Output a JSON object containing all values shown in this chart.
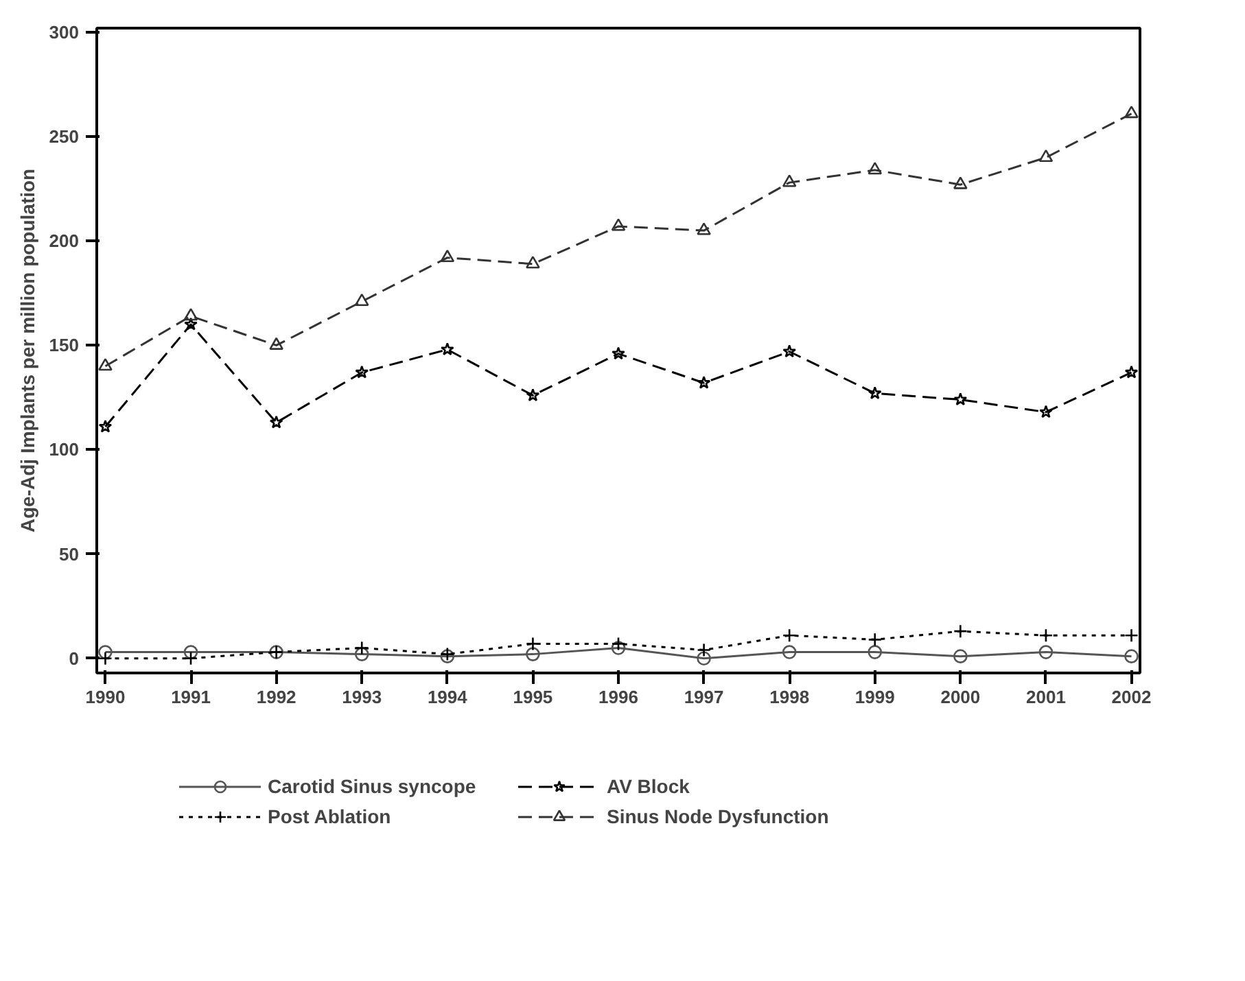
{
  "chart_data": {
    "type": "line",
    "ylabel": "Age-Adj Implants per million population",
    "x": [
      1990,
      1991,
      1992,
      1993,
      1994,
      1995,
      1996,
      1997,
      1998,
      1999,
      2000,
      2001,
      2002
    ],
    "xlim": [
      1990,
      2002
    ],
    "xticks": [
      1990,
      1991,
      1992,
      1993,
      1994,
      1995,
      1996,
      1997,
      1998,
      1999,
      2000,
      2001,
      2002
    ],
    "ylim": [
      -7,
      302
    ],
    "yticks": [
      0,
      50,
      100,
      150,
      200,
      250,
      300
    ],
    "grid": false,
    "legend": "bottom",
    "series": [
      {
        "name": "Carotid Sinus syncope",
        "color": "#555555",
        "marker": "circle",
        "line_style": "solid",
        "values": [
          3,
          3,
          3,
          2,
          1,
          2,
          5,
          0,
          3,
          3,
          1,
          3,
          1
        ]
      },
      {
        "name": "Post Ablation",
        "color": "#000000",
        "marker": "cross",
        "line_style": "dotted",
        "values": [
          0,
          0,
          3,
          5,
          2,
          7,
          7,
          4,
          11,
          9,
          13,
          11,
          11
        ]
      },
      {
        "name": "AV Block",
        "color": "#000000",
        "marker": "star",
        "line_style": "dashed",
        "values": [
          111,
          160,
          113,
          137,
          148,
          126,
          146,
          132,
          147,
          127,
          124,
          118,
          137
        ]
      },
      {
        "name": "Sinus Node Dysfunction",
        "color": "#333333",
        "marker": "triangle",
        "line_style": "dashed",
        "values": [
          140,
          164,
          150,
          171,
          192,
          189,
          207,
          205,
          228,
          234,
          227,
          240,
          261
        ]
      }
    ]
  }
}
